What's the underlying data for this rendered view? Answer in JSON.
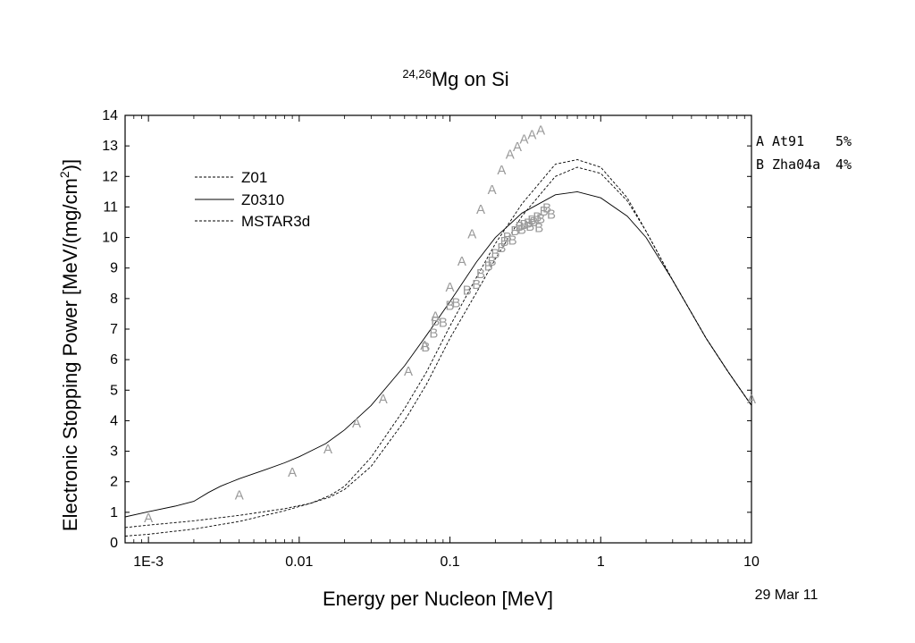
{
  "chart_data": {
    "type": "line",
    "title": {
      "sup": "24,26",
      "main": "Mg on Si"
    },
    "xlabel": "Energy per Nucleon [MeV]",
    "ylabel": "Electronic Stopping Power [MeV/(mg/cm",
    "ylabel_sup": "2",
    "ylabel_end": ")]",
    "x_scale": "log",
    "xlim": [
      0.0007,
      10
    ],
    "ylim": [
      0,
      14
    ],
    "x_ticks": [
      {
        "value": 0.001,
        "label": "1E-3"
      },
      {
        "value": 0.01,
        "label": "0.01"
      },
      {
        "value": 0.1,
        "label": "0.1"
      },
      {
        "value": 1,
        "label": "1"
      },
      {
        "value": 10,
        "label": "10"
      }
    ],
    "y_ticks": [
      0,
      1,
      2,
      3,
      4,
      5,
      6,
      7,
      8,
      9,
      10,
      11,
      12,
      13,
      14
    ],
    "grid": false,
    "series": [
      {
        "name": "Z01",
        "style": "dashed",
        "x": [
          0.0007,
          0.001,
          0.002,
          0.004,
          0.008,
          0.012,
          0.016,
          0.02,
          0.03,
          0.05,
          0.07,
          0.1,
          0.15,
          0.2,
          0.3,
          0.5,
          0.7,
          1,
          1.5,
          2,
          3,
          5,
          7,
          10
        ],
        "y": [
          0.5,
          0.58,
          0.72,
          0.9,
          1.12,
          1.3,
          1.5,
          1.75,
          2.5,
          4.0,
          5.2,
          6.7,
          8.2,
          9.3,
          10.7,
          12.0,
          12.3,
          12.1,
          11.2,
          10.2,
          8.6,
          6.7,
          5.6,
          4.5
        ]
      },
      {
        "name": "Z0310",
        "style": "solid",
        "x": [
          0.0007,
          0.001,
          0.0015,
          0.002,
          0.0025,
          0.003,
          0.004,
          0.006,
          0.008,
          0.01,
          0.015,
          0.02,
          0.03,
          0.05,
          0.07,
          0.1,
          0.15,
          0.2,
          0.3,
          0.5,
          0.7,
          1,
          1.5,
          2,
          3,
          5,
          7,
          10
        ],
        "y": [
          0.85,
          1.02,
          1.2,
          1.36,
          1.65,
          1.85,
          2.1,
          2.4,
          2.62,
          2.82,
          3.25,
          3.7,
          4.5,
          5.8,
          6.8,
          7.9,
          9.2,
          10.0,
          10.8,
          11.4,
          11.5,
          11.3,
          10.7,
          10.0,
          8.6,
          6.7,
          5.6,
          4.5
        ]
      },
      {
        "name": "MSTAR3d",
        "style": "dashed",
        "x": [
          0.0007,
          0.001,
          0.002,
          0.004,
          0.008,
          0.012,
          0.016,
          0.02,
          0.03,
          0.05,
          0.07,
          0.1,
          0.15,
          0.2,
          0.3,
          0.5,
          0.7,
          1,
          1.5,
          2,
          3,
          5,
          7,
          10
        ],
        "y": [
          0.22,
          0.28,
          0.45,
          0.7,
          1.05,
          1.3,
          1.55,
          1.85,
          2.8,
          4.4,
          5.6,
          7.1,
          8.7,
          9.8,
          11.1,
          12.4,
          12.55,
          12.3,
          11.3,
          10.2,
          8.6,
          6.7,
          5.6,
          4.5
        ]
      }
    ],
    "markers": [
      {
        "label": "A",
        "x": [
          0.001,
          0.004,
          0.009,
          0.0155,
          0.024,
          0.036,
          0.053,
          0.068,
          0.08,
          0.1,
          0.12,
          0.14,
          0.16,
          0.19,
          0.22,
          0.25,
          0.28,
          0.31,
          0.35,
          0.4,
          10
        ],
        "y": [
          0.85,
          1.6,
          2.35,
          3.1,
          3.95,
          4.75,
          5.65,
          6.5,
          7.45,
          8.4,
          9.25,
          10.15,
          10.95,
          11.6,
          12.25,
          12.75,
          13.0,
          13.25,
          13.4,
          13.55,
          4.75
        ]
      },
      {
        "label": "B",
        "x": [
          0.069,
          0.078,
          0.08,
          0.09,
          0.1,
          0.11,
          0.13,
          0.15,
          0.16,
          0.18,
          0.19,
          0.2,
          0.22,
          0.23,
          0.24,
          0.26,
          0.27,
          0.29,
          0.31,
          0.33,
          0.35,
          0.36,
          0.38,
          0.4,
          0.42,
          0.44,
          0.47,
          0.3,
          0.34,
          0.39
        ],
        "y": [
          6.45,
          6.9,
          7.3,
          7.25,
          7.8,
          7.9,
          8.3,
          8.5,
          8.85,
          9.1,
          9.25,
          9.5,
          9.7,
          9.9,
          10.05,
          9.95,
          10.25,
          10.4,
          10.45,
          10.5,
          10.6,
          10.55,
          10.7,
          10.65,
          10.9,
          11.0,
          10.8,
          10.3,
          10.4,
          10.35
        ]
      }
    ],
    "side_legend": [
      {
        "symbol": "A",
        "ref": "At91",
        "err": "5%"
      },
      {
        "symbol": "B",
        "ref": "Zha04a",
        "err": "4%"
      }
    ],
    "date": "29 Mar 11"
  }
}
